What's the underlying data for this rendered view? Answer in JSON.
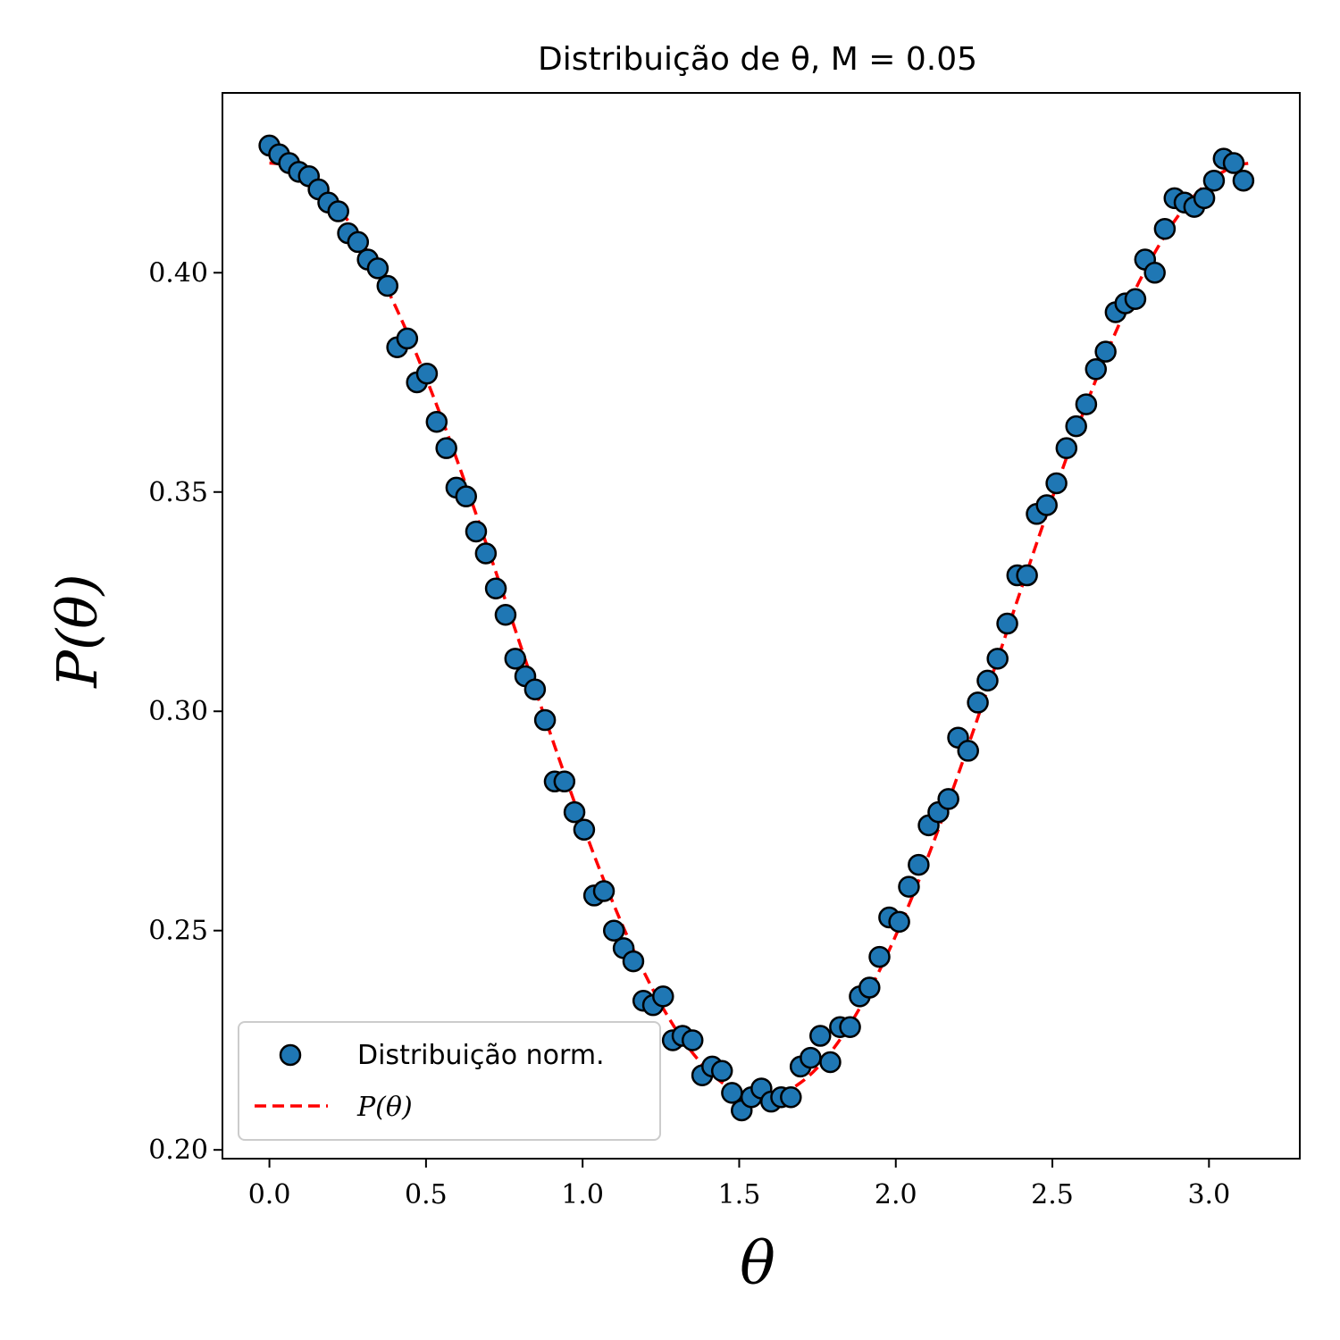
{
  "chart_data": {
    "type": "scatter",
    "title": "Distribuição de θ, M = 0.05",
    "xlabel": "θ",
    "ylabel": "P(θ)",
    "xlim": [
      -0.15,
      3.29
    ],
    "ylim": [
      0.198,
      0.441
    ],
    "xticks": [
      0.0,
      0.5,
      1.0,
      1.5,
      2.0,
      2.5,
      3.0
    ],
    "xtick_labels": [
      "0.0",
      "0.5",
      "1.0",
      "1.5",
      "2.0",
      "2.5",
      "3.0"
    ],
    "yticks": [
      0.2,
      0.25,
      0.3,
      0.35,
      0.4
    ],
    "ytick_labels": [
      "0.20",
      "0.25",
      "0.30",
      "0.35",
      "0.40"
    ],
    "grid": false,
    "legend": {
      "placement": "lower-left",
      "entries": [
        {
          "label": "Distribuição norm.",
          "kind": "scatter"
        },
        {
          "label": "P(θ)",
          "kind": "line"
        }
      ]
    },
    "series": [
      {
        "name": "Distribuição norm.",
        "kind": "scatter",
        "color": "#1f77b4",
        "edge_color": "#000000",
        "x": [
          0.0,
          0.031,
          0.063,
          0.094,
          0.126,
          0.157,
          0.188,
          0.22,
          0.251,
          0.283,
          0.314,
          0.346,
          0.377,
          0.408,
          0.44,
          0.471,
          0.503,
          0.534,
          0.565,
          0.597,
          0.628,
          0.66,
          0.691,
          0.723,
          0.754,
          0.785,
          0.817,
          0.848,
          0.88,
          0.911,
          0.942,
          0.974,
          1.005,
          1.037,
          1.068,
          1.1,
          1.131,
          1.162,
          1.194,
          1.225,
          1.257,
          1.288,
          1.319,
          1.351,
          1.382,
          1.414,
          1.445,
          1.477,
          1.508,
          1.539,
          1.571,
          1.602,
          1.634,
          1.665,
          1.696,
          1.728,
          1.759,
          1.791,
          1.822,
          1.854,
          1.885,
          1.916,
          1.948,
          1.979,
          2.011,
          2.042,
          2.073,
          2.105,
          2.136,
          2.168,
          2.199,
          2.231,
          2.262,
          2.293,
          2.325,
          2.356,
          2.388,
          2.419,
          2.45,
          2.482,
          2.513,
          2.545,
          2.576,
          2.608,
          2.639,
          2.67,
          2.702,
          2.733,
          2.765,
          2.796,
          2.827,
          2.859,
          2.89,
          2.922,
          2.953,
          2.985,
          3.016,
          3.047,
          3.079,
          3.11
        ],
        "y": [
          0.429,
          0.427,
          0.425,
          0.423,
          0.422,
          0.419,
          0.416,
          0.414,
          0.409,
          0.407,
          0.403,
          0.401,
          0.397,
          0.383,
          0.385,
          0.375,
          0.377,
          0.366,
          0.36,
          0.351,
          0.349,
          0.341,
          0.336,
          0.328,
          0.322,
          0.312,
          0.308,
          0.305,
          0.298,
          0.284,
          0.284,
          0.277,
          0.273,
          0.258,
          0.259,
          0.25,
          0.246,
          0.243,
          0.234,
          0.233,
          0.235,
          0.225,
          0.226,
          0.225,
          0.217,
          0.219,
          0.218,
          0.213,
          0.209,
          0.212,
          0.214,
          0.211,
          0.212,
          0.212,
          0.219,
          0.221,
          0.226,
          0.22,
          0.228,
          0.228,
          0.235,
          0.237,
          0.244,
          0.253,
          0.252,
          0.26,
          0.265,
          0.274,
          0.277,
          0.28,
          0.294,
          0.291,
          0.302,
          0.307,
          0.312,
          0.32,
          0.331,
          0.331,
          0.345,
          0.347,
          0.352,
          0.36,
          0.365,
          0.37,
          0.378,
          0.382,
          0.391,
          0.393,
          0.394,
          0.403,
          0.4,
          0.41,
          0.417,
          0.416,
          0.415,
          0.417,
          0.421,
          0.426,
          0.425,
          0.421
        ]
      },
      {
        "name": "P(θ)",
        "kind": "line",
        "style": "dashed",
        "color": "#ff0000",
        "model": {
          "mean": 0.3185,
          "amplitude": 0.1065,
          "expression": "0.3185 + 0.1065·cos(2θ)"
        },
        "x_range": [
          0.0,
          3.13
        ]
      }
    ]
  }
}
